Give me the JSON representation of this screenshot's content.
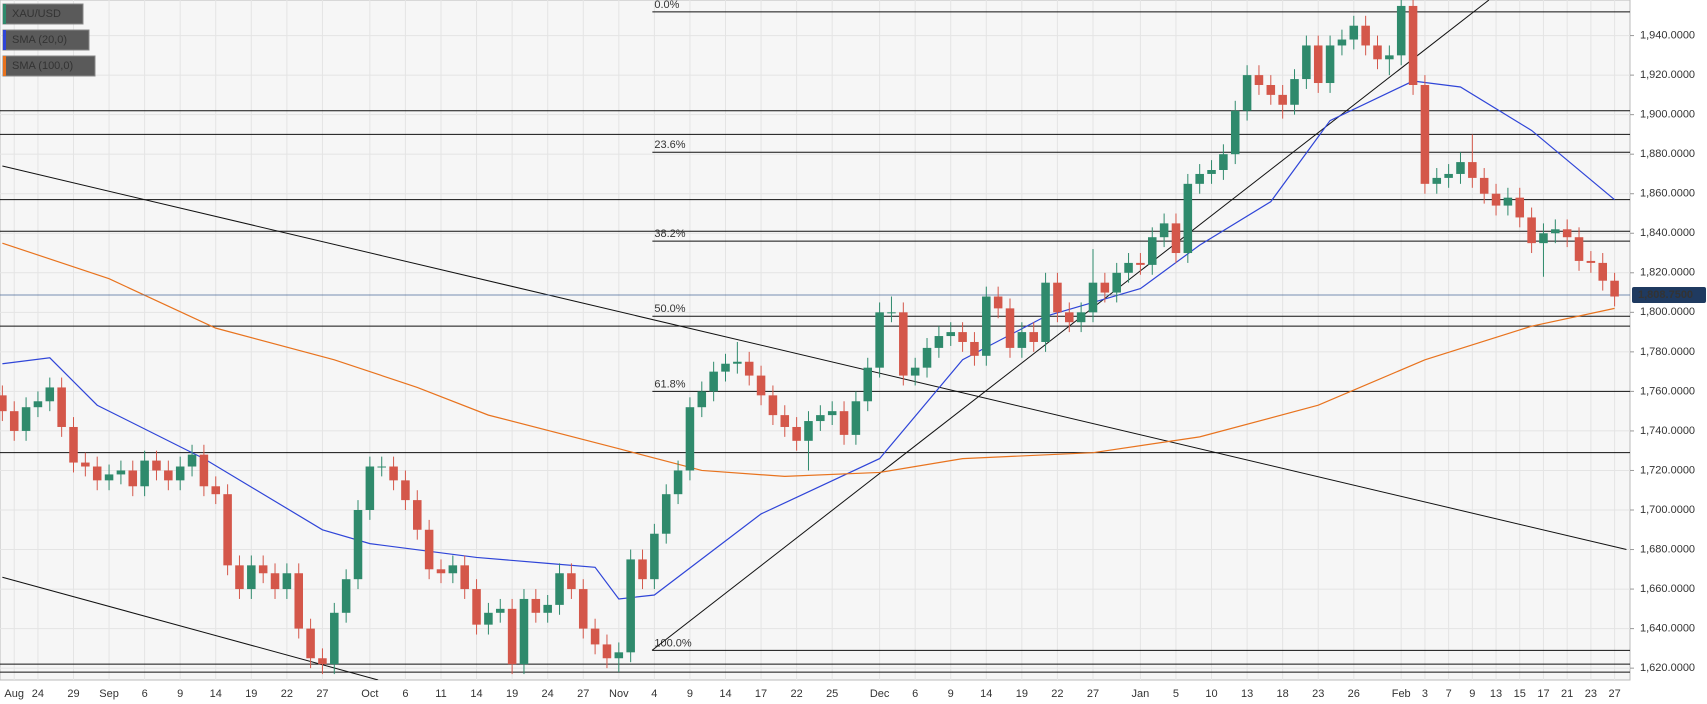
{
  "chart_data": {
    "type": "candlestick",
    "series": [
      {
        "name": "XAU/USD",
        "up_color": "#2f8a6c",
        "down_color": "#d4574a",
        "open": [
          1758,
          1750,
          1740,
          1752,
          1755,
          1762,
          1742,
          1724,
          1722,
          1715,
          1718,
          1720,
          1712,
          1725,
          1720,
          1715,
          1722,
          1728,
          1712,
          1708,
          1672,
          1660,
          1672,
          1668,
          1660,
          1668,
          1640,
          1625,
          1622,
          1648,
          1665,
          1700,
          1722,
          1722,
          1715,
          1705,
          1690,
          1670,
          1668,
          1672,
          1660,
          1642,
          1648,
          1650,
          1622,
          1655,
          1648,
          1652,
          1668,
          1660,
          1640,
          1632,
          1625,
          1628,
          1675,
          1665,
          1688,
          1708,
          1720,
          1752,
          1760,
          1770,
          1774,
          1775,
          1768,
          1758,
          1748,
          1742,
          1735,
          1745,
          1748,
          1750,
          1738,
          1755,
          1772,
          1800,
          1800,
          1768,
          1772,
          1782,
          1788,
          1790,
          1785,
          1778,
          1808,
          1802,
          1782,
          1790,
          1785,
          1815,
          1800,
          1795,
          1800,
          1815,
          1810,
          1820,
          1825,
          1824,
          1838,
          1845,
          1830,
          1865,
          1870,
          1872,
          1880,
          1902,
          1920,
          1915,
          1910,
          1905,
          1918,
          1935,
          1916,
          1935,
          1938,
          1945,
          1935,
          1928,
          1930,
          1955,
          1915,
          1865,
          1868,
          1870,
          1876,
          1868,
          1860,
          1854,
          1858,
          1848,
          1835,
          1840,
          1842,
          1838,
          1826,
          1825,
          1816
        ],
        "high": [
          1763,
          1755,
          1757,
          1760,
          1767,
          1767,
          1747,
          1729,
          1727,
          1723,
          1725,
          1725,
          1730,
          1730,
          1725,
          1727,
          1733,
          1733,
          1717,
          1713,
          1677,
          1677,
          1677,
          1673,
          1673,
          1673,
          1645,
          1630,
          1653,
          1670,
          1705,
          1727,
          1727,
          1727,
          1720,
          1710,
          1695,
          1675,
          1677,
          1677,
          1665,
          1653,
          1655,
          1655,
          1660,
          1660,
          1657,
          1673,
          1673,
          1665,
          1645,
          1637,
          1633,
          1680,
          1680,
          1693,
          1713,
          1725,
          1757,
          1765,
          1775,
          1779,
          1785,
          1780,
          1773,
          1763,
          1753,
          1747,
          1750,
          1753,
          1755,
          1755,
          1760,
          1777,
          1805,
          1808,
          1805,
          1777,
          1787,
          1793,
          1795,
          1795,
          1790,
          1813,
          1813,
          1807,
          1795,
          1795,
          1820,
          1820,
          1805,
          1805,
          1832,
          1820,
          1825,
          1830,
          1830,
          1843,
          1850,
          1850,
          1870,
          1875,
          1877,
          1885,
          1907,
          1925,
          1925,
          1920,
          1915,
          1923,
          1940,
          1940,
          1940,
          1943,
          1950,
          1950,
          1940,
          1935,
          1960,
          1960,
          1920,
          1873,
          1875,
          1881,
          1890,
          1873,
          1865,
          1863,
          1863,
          1853,
          1845,
          1847,
          1847,
          1843,
          1831,
          1830,
          1820
        ],
        "low": [
          1745,
          1735,
          1735,
          1747,
          1750,
          1737,
          1719,
          1717,
          1710,
          1710,
          1713,
          1707,
          1707,
          1715,
          1710,
          1710,
          1717,
          1707,
          1703,
          1667,
          1655,
          1655,
          1663,
          1655,
          1655,
          1635,
          1620,
          1617,
          1617,
          1643,
          1660,
          1695,
          1717,
          1710,
          1700,
          1685,
          1665,
          1663,
          1663,
          1655,
          1637,
          1637,
          1643,
          1617,
          1617,
          1643,
          1643,
          1647,
          1655,
          1635,
          1627,
          1620,
          1618,
          1623,
          1660,
          1660,
          1683,
          1703,
          1715,
          1747,
          1755,
          1765,
          1769,
          1763,
          1753,
          1743,
          1737,
          1730,
          1720,
          1740,
          1743,
          1733,
          1733,
          1750,
          1767,
          1795,
          1763,
          1763,
          1767,
          1777,
          1783,
          1780,
          1773,
          1773,
          1797,
          1777,
          1777,
          1780,
          1780,
          1795,
          1790,
          1790,
          1795,
          1805,
          1805,
          1815,
          1819,
          1819,
          1833,
          1825,
          1825,
          1860,
          1865,
          1867,
          1875,
          1897,
          1910,
          1905,
          1898,
          1900,
          1913,
          1911,
          1911,
          1930,
          1933,
          1930,
          1923,
          1920,
          1925,
          1910,
          1860,
          1860,
          1863,
          1865,
          1863,
          1855,
          1849,
          1849,
          1843,
          1830,
          1818,
          1835,
          1833,
          1821,
          1820,
          1811,
          1803
        ],
        "close": [
          1750,
          1740,
          1752,
          1755,
          1762,
          1742,
          1724,
          1722,
          1715,
          1718,
          1720,
          1712,
          1725,
          1720,
          1715,
          1722,
          1728,
          1712,
          1708,
          1672,
          1660,
          1672,
          1668,
          1660,
          1668,
          1640,
          1625,
          1622,
          1648,
          1665,
          1700,
          1722,
          1722,
          1715,
          1705,
          1690,
          1670,
          1668,
          1672,
          1660,
          1642,
          1648,
          1650,
          1622,
          1655,
          1648,
          1652,
          1668,
          1660,
          1640,
          1632,
          1625,
          1628,
          1675,
          1665,
          1688,
          1708,
          1720,
          1752,
          1760,
          1770,
          1774,
          1775,
          1768,
          1758,
          1748,
          1742,
          1735,
          1745,
          1748,
          1750,
          1738,
          1755,
          1772,
          1800,
          1800,
          1768,
          1772,
          1782,
          1788,
          1790,
          1785,
          1778,
          1808,
          1802,
          1782,
          1790,
          1785,
          1815,
          1800,
          1795,
          1800,
          1815,
          1810,
          1820,
          1825,
          1824,
          1838,
          1845,
          1830,
          1865,
          1870,
          1872,
          1880,
          1902,
          1920,
          1915,
          1910,
          1905,
          1918,
          1935,
          1916,
          1935,
          1938,
          1945,
          1935,
          1928,
          1930,
          1955,
          1915,
          1865,
          1868,
          1870,
          1876,
          1868,
          1860,
          1854,
          1858,
          1848,
          1835,
          1840,
          1842,
          1838,
          1826,
          1825,
          1816,
          1808
        ]
      }
    ],
    "overlays": [
      {
        "name": "SMA (20,0)",
        "color": "#2f45d8",
        "x": [
          0,
          4,
          8,
          17,
          27,
          31,
          40,
          46,
          50,
          52,
          55,
          64,
          74,
          81,
          88,
          96,
          101,
          107,
          112,
          119,
          123,
          129,
          136
        ],
        "values": [
          1774,
          1777,
          1753,
          1726,
          1690,
          1683,
          1676,
          1673,
          1671,
          1655,
          1657,
          1698,
          1726,
          1776,
          1798,
          1812,
          1834,
          1856,
          1897,
          1917,
          1914,
          1892,
          1857
        ]
      },
      {
        "name": "SMA (100,0)",
        "color": "#e8731e",
        "x": [
          0,
          9,
          18,
          28,
          35,
          41,
          52,
          59,
          66,
          74,
          81,
          92,
          101,
          111,
          120,
          129,
          136
        ],
        "values": [
          1835,
          1817,
          1792,
          1776,
          1762,
          1748,
          1731,
          1720,
          1717,
          1719,
          1726,
          1729,
          1737,
          1753,
          1776,
          1793,
          1802
        ]
      }
    ],
    "categories": [
      null,
      "Aug",
      null,
      "24",
      null,
      null,
      "29",
      null,
      null,
      "Sep",
      null,
      null,
      "6",
      null,
      null,
      "9",
      null,
      null,
      "14",
      null,
      null,
      "19",
      null,
      null,
      "22",
      null,
      null,
      "27",
      null,
      null,
      null,
      "Oct",
      null,
      null,
      "6",
      null,
      null,
      "11",
      null,
      null,
      "14",
      null,
      null,
      "19",
      null,
      null,
      "24",
      null,
      null,
      "27",
      null,
      null,
      "Nov",
      null,
      null,
      "4",
      null,
      null,
      "9",
      null,
      null,
      "14",
      null,
      null,
      "17",
      null,
      null,
      "22",
      null,
      null,
      "25",
      null,
      null,
      null,
      "Dec",
      null,
      null,
      "6",
      null,
      null,
      "9",
      null,
      null,
      "14",
      null,
      null,
      "19",
      null,
      null,
      "22",
      null,
      null,
      "27",
      null,
      null,
      null,
      "Jan",
      null,
      null,
      "5",
      null,
      null,
      "10",
      null,
      null,
      "13",
      null,
      null,
      "18",
      null,
      null,
      "23",
      null,
      null,
      "26",
      null,
      null,
      null,
      "Feb",
      null,
      "3",
      null,
      "7",
      null,
      "9",
      null,
      "13",
      null,
      "15",
      null,
      "17",
      null,
      "21",
      null,
      "23",
      null,
      "27"
    ],
    "ylim": [
      1614,
      1958
    ],
    "yticks": [
      {
        "value": 1620,
        "label": "1,620.0000"
      },
      {
        "value": 1640,
        "label": "1,640.0000"
      },
      {
        "value": 1660,
        "label": "1,660.0000"
      },
      {
        "value": 1680,
        "label": "1,680.0000"
      },
      {
        "value": 1700,
        "label": "1,700.0000"
      },
      {
        "value": 1720,
        "label": "1,720.0000"
      },
      {
        "value": 1740,
        "label": "1,740.0000"
      },
      {
        "value": 1760,
        "label": "1,760.0000"
      },
      {
        "value": 1780,
        "label": "1,780.0000"
      },
      {
        "value": 1800,
        "label": "1,800.0000"
      },
      {
        "value": 1820,
        "label": "1,820.0000"
      },
      {
        "value": 1840,
        "label": "1,840.0000"
      },
      {
        "value": 1860,
        "label": "1,860.0000"
      },
      {
        "value": 1880,
        "label": "1,880.0000"
      },
      {
        "value": 1900,
        "label": "1,900.0000"
      },
      {
        "value": 1920,
        "label": "1,920.0000"
      },
      {
        "value": 1940,
        "label": "1,940.0000"
      }
    ],
    "last_price": {
      "value": 1808.75,
      "label": "1,808.7500"
    },
    "fib_start": 55,
    "fib_levels": [
      {
        "value": 1952,
        "label": "0.0%"
      },
      {
        "value": 1881,
        "label": "23.6%"
      },
      {
        "value": 1836,
        "label": "38.2%"
      },
      {
        "value": 1798,
        "label": "50.0%"
      },
      {
        "value": 1760,
        "label": "61.8%"
      },
      {
        "value": 1629,
        "label": "100.0%"
      }
    ],
    "hlines": [
      1902,
      1890,
      1857,
      1841,
      1793,
      1729,
      1622,
      1618
    ],
    "trendlines": [
      {
        "x": [
          0,
          137
        ],
        "values": [
          1874,
          1680
        ]
      },
      {
        "x": [
          0,
          31.7
        ],
        "values": [
          1666,
          1614
        ]
      },
      {
        "x": [
          54.8,
          125.4
        ],
        "values": [
          1629,
          1958
        ]
      }
    ],
    "grid": true
  }
}
